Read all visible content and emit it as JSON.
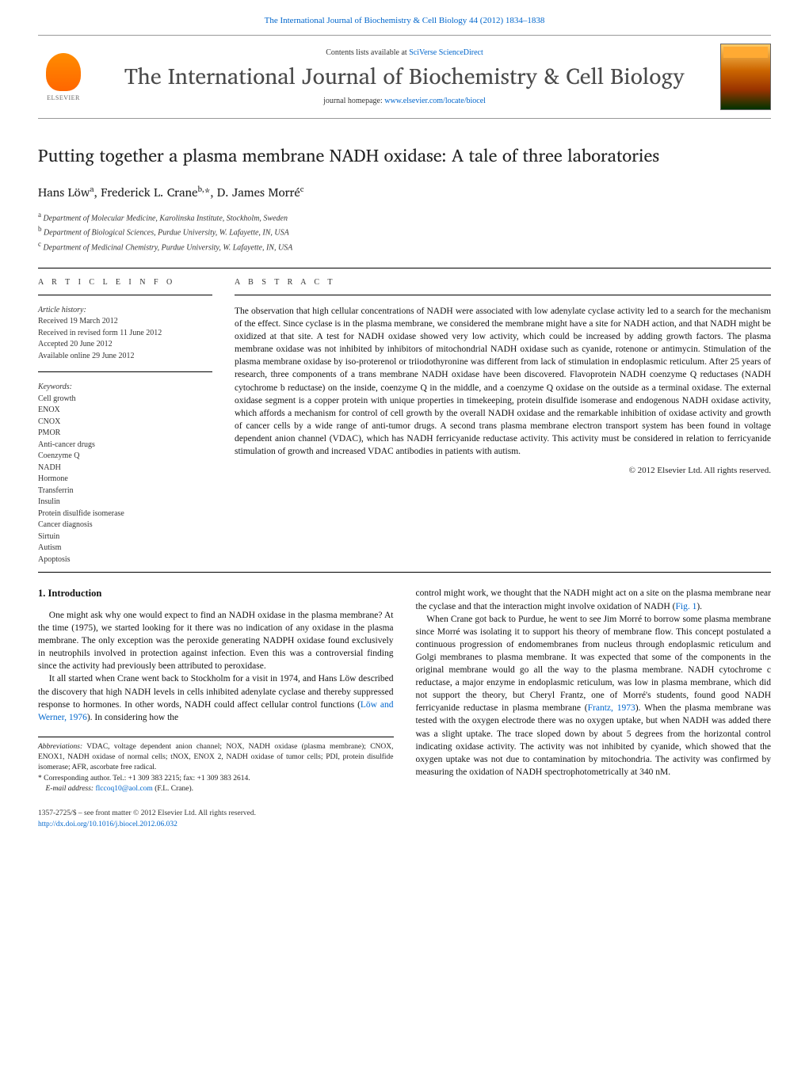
{
  "header": {
    "citation": "The International Journal of Biochemistry & Cell Biology 44 (2012) 1834–1838",
    "contents_prefix": "Contents lists available at ",
    "contents_link": "SciVerse ScienceDirect",
    "journal_title": "The International Journal of Biochemistry & Cell Biology",
    "homepage_prefix": "journal homepage: ",
    "homepage_url": "www.elsevier.com/locate/biocel",
    "elsevier_label": "ELSEVIER"
  },
  "article": {
    "title": "Putting together a plasma membrane NADH oxidase: A tale of three laboratories",
    "authors_html": "Hans Löw<sup>a</sup>, Frederick L. Crane<sup>b,</sup>*, D. James Morré<sup>c</sup>",
    "affiliations": [
      {
        "marker": "a",
        "text": "Department of Molecular Medicine, Karolinska Institute, Stockholm, Sweden"
      },
      {
        "marker": "b",
        "text": "Department of Biological Sciences, Purdue University, W. Lafayette, IN, USA"
      },
      {
        "marker": "c",
        "text": "Department of Medicinal Chemistry, Purdue University, W. Lafayette, IN, USA"
      }
    ]
  },
  "info": {
    "section_label": "A R T I C L E   I N F O",
    "history_label": "Article history:",
    "history": [
      "Received 19 March 2012",
      "Received in revised form 11 June 2012",
      "Accepted 20 June 2012",
      "Available online 29 June 2012"
    ],
    "keywords_label": "Keywords:",
    "keywords": [
      "Cell growth",
      "ENOX",
      "CNOX",
      "PMOR",
      "Anti-cancer drugs",
      "Coenzyme Q",
      "NADH",
      "Hormone",
      "Transferrin",
      "Insulin",
      "Protein disulfide isomerase",
      "Cancer diagnosis",
      "Sirtuin",
      "Autism",
      "Apoptosis"
    ]
  },
  "abstract": {
    "section_label": "A B S T R A C T",
    "text": "The observation that high cellular concentrations of NADH were associated with low adenylate cyclase activity led to a search for the mechanism of the effect. Since cyclase is in the plasma membrane, we considered the membrane might have a site for NADH action, and that NADH might be oxidized at that site. A test for NADH oxidase showed very low activity, which could be increased by adding growth factors. The plasma membrane oxidase was not inhibited by inhibitors of mitochondrial NADH oxidase such as cyanide, rotenone or antimycin. Stimulation of the plasma membrane oxidase by iso-proterenol or triiodothyronine was different from lack of stimulation in endoplasmic reticulum. After 25 years of research, three components of a trans membrane NADH oxidase have been discovered. Flavoprotein NADH coenzyme Q reductases (NADH cytochrome b reductase) on the inside, coenzyme Q in the middle, and a coenzyme Q oxidase on the outside as a terminal oxidase. The external oxidase segment is a copper protein with unique properties in timekeeping, protein disulfide isomerase and endogenous NADH oxidase activity, which affords a mechanism for control of cell growth by the overall NADH oxidase and the remarkable inhibition of oxidase activity and growth of cancer cells by a wide range of anti-tumor drugs. A second trans plasma membrane electron transport system has been found in voltage dependent anion channel (VDAC), which has NADH ferricyanide reductase activity. This activity must be considered in relation to ferricyanide stimulation of growth and increased VDAC antibodies in patients with autism.",
    "copyright": "© 2012 Elsevier Ltd. All rights reserved."
  },
  "body": {
    "heading_number": "1.",
    "heading_text": "Introduction",
    "p1": "One might ask why one would expect to find an NADH oxidase in the plasma membrane? At the time (1975), we started looking for it there was no indication of any oxidase in the plasma membrane. The only exception was the peroxide generating NADPH oxidase found exclusively in neutrophils involved in protection against infection. Even this was a controversial finding since the activity had previously been attributed to peroxidase.",
    "p2_pre": "It all started when Crane went back to Stockholm for a visit in 1974, and Hans Löw described the discovery that high NADH levels in cells inhibited adenylate cyclase and thereby suppressed response to hormones. In other words, NADH could affect cellular control functions (",
    "p2_cite": "Löw and Werner, 1976",
    "p2_post": "). In considering how the",
    "p3_pre": "control might work, we thought that the NADH might act on a site on the plasma membrane near the cyclase and that the interaction might involve oxidation of NADH (",
    "p3_cite": "Fig. 1",
    "p3_post": ").",
    "p4_pre": "When Crane got back to Purdue, he went to see Jim Morré to borrow some plasma membrane since Morré was isolating it to support his theory of membrane flow. This concept postulated a continuous progression of endomembranes from nucleus through endoplasmic reticulum and Golgi membranes to plasma membrane. It was expected that some of the components in the original membrane would go all the way to the plasma membrane. NADH cytochrome c reductase, a major enzyme in endoplasmic reticulum, was low in plasma membrane, which did not support the theory, but Cheryl Frantz, one of Morré's students, found good NADH ferricyanide reductase in plasma membrane (",
    "p4_cite": "Frantz, 1973",
    "p4_post": "). When the plasma membrane was tested with the oxygen electrode there was no oxygen uptake, but when NADH was added there was a slight uptake. The trace sloped down by about 5 degrees from the horizontal control indicating oxidase activity. The activity was not inhibited by cyanide, which showed that the oxygen uptake was not due to contamination by mitochondria. The activity was confirmed by measuring the oxidation of NADH spectrophotometrically at 340 nM."
  },
  "footnotes": {
    "abbr_label": "Abbreviations:",
    "abbr_text": "VDAC, voltage dependent anion channel; NOX, NADH oxidase (plasma membrane); CNOX, ENOX1, NADH oxidase of normal cells; tNOX, ENOX 2, NADH oxidase of tumor cells; PDI, protein disulfide isomerase; AFR, ascorbate free radical.",
    "corr_marker": "*",
    "corr_text": "Corresponding author. Tel.: +1 309 383 2215; fax: +1 309 383 2614.",
    "email_label": "E-mail address:",
    "email": "flccoq10@aol.com",
    "email_person": "(F.L. Crane)."
  },
  "footer": {
    "issn_line": "1357-2725/$ – see front matter © 2012 Elsevier Ltd. All rights reserved.",
    "doi": "http://dx.doi.org/10.1016/j.biocel.2012.06.032"
  },
  "colors": {
    "link": "#0066cc",
    "text": "#111111",
    "muted": "#333333",
    "rule": "#000000"
  }
}
